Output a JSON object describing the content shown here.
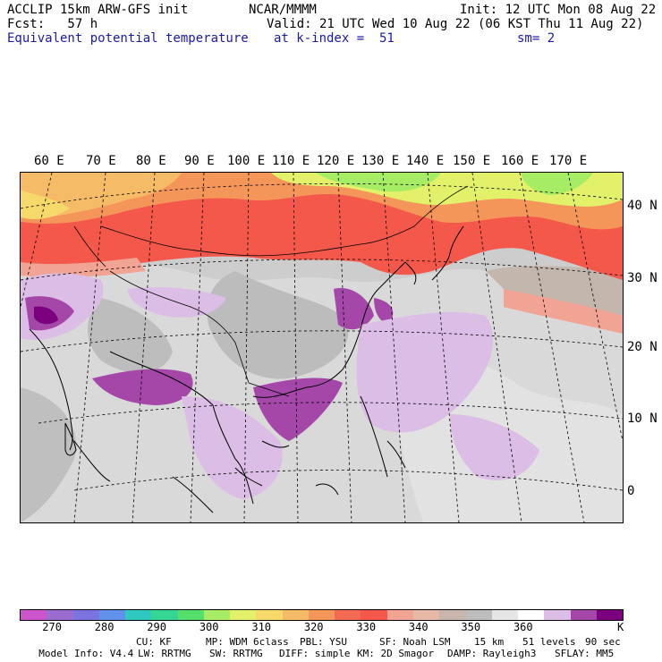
{
  "header": {
    "model": "ACCLIP 15km ARW-GFS init",
    "org": "NCAR/MMMM",
    "init": "Init: 12 UTC Mon 08 Aug 22",
    "fcst": "Fcst:   57 h",
    "valid": "Valid: 21 UTC Wed 10 Aug 22 (06 KST Thu 11 Aug 22)",
    "field": "Equivalent potential temperature",
    "level": "at k-index =  51",
    "smooth": "sm= 2"
  },
  "lon_labels": [
    "60 E",
    "70 E",
    "80 E",
    "90 E",
    "100 E",
    "110 E",
    "120 E",
    "130 E",
    "140 E",
    "150 E",
    "160 E",
    "170 E"
  ],
  "lat_labels": [
    "40 N",
    "30 N",
    "20 N",
    "10 N",
    "0"
  ],
  "colorbar": {
    "colors": [
      "#cc55cc",
      "#9a6ccf",
      "#7b74e0",
      "#5f92e8",
      "#2fc9c1",
      "#35d693",
      "#54e06a",
      "#a6ec64",
      "#e2f06a",
      "#f5d96a",
      "#f6bb66",
      "#f4955a",
      "#f36a52",
      "#f3584a",
      "#f2a494",
      "#e7b8a8",
      "#c8b6ad",
      "#bdbdbd",
      "#e6e6e6",
      "#ffffff",
      "#dcbde6",
      "#a447a8",
      "#7a007e"
    ],
    "labels": [
      "270",
      "280",
      "290",
      "300",
      "310",
      "320",
      "330",
      "340",
      "350",
      "360"
    ],
    "unit": "K"
  },
  "footer": {
    "line1": [
      "Model Info: V4.4",
      "CU: KF",
      "MP: WDM 6class",
      "PBL: YSU",
      "SF: Noah LSM",
      "15 km",
      "51 levels",
      "90 sec"
    ],
    "line2": [
      "LW: RRTMG",
      "SW: RRTMG",
      "DIFF: simple",
      "KM: 2D Smagor",
      "DAMP: Rayleigh3",
      "SFLAY: MM5"
    ]
  }
}
